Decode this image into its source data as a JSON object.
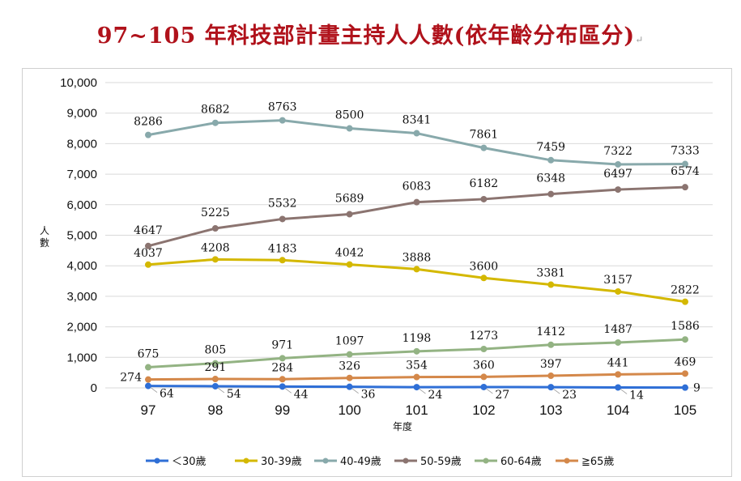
{
  "title": "97~105 年科技部計畫主持人人數(依年齡分布區分)",
  "title_mark": "↵",
  "chart_data": {
    "type": "line",
    "title": "97~105 年科技部計畫主持人人數(依年齡分布區分)",
    "xlabel": "年度",
    "ylabel": "人數",
    "categories": [
      "97",
      "98",
      "99",
      "100",
      "101",
      "102",
      "103",
      "104",
      "105"
    ],
    "ylim": [
      0,
      10000
    ],
    "yticks": [
      "0",
      "1,000",
      "2,000",
      "3,000",
      "4,000",
      "5,000",
      "6,000",
      "7,000",
      "8,000",
      "9,000",
      "10,000"
    ],
    "grid": true,
    "legend_position": "bottom",
    "series": [
      {
        "name": "＜30歲",
        "color": "#2f6fd6",
        "values": [
          64,
          54,
          44,
          36,
          24,
          27,
          23,
          14,
          9
        ]
      },
      {
        "name": "30-39歲",
        "color": "#d4b800",
        "values": [
          4037,
          4208,
          4183,
          4042,
          3888,
          3600,
          3381,
          3157,
          2822
        ]
      },
      {
        "name": "40-49歲",
        "color": "#88a9ab",
        "values": [
          8286,
          8682,
          8763,
          8500,
          8341,
          7861,
          7459,
          7322,
          7333
        ]
      },
      {
        "name": "50-59歲",
        "color": "#8b7470",
        "values": [
          4647,
          5225,
          5532,
          5689,
          6083,
          6182,
          6348,
          6497,
          6574
        ]
      },
      {
        "name": "60-64歲",
        "color": "#93b383",
        "values": [
          675,
          805,
          971,
          1097,
          1198,
          1273,
          1412,
          1487,
          1586
        ]
      },
      {
        "name": "≧65歲",
        "color": "#d4884a",
        "values": [
          274,
          291,
          284,
          326,
          354,
          360,
          397,
          441,
          469
        ]
      }
    ]
  }
}
